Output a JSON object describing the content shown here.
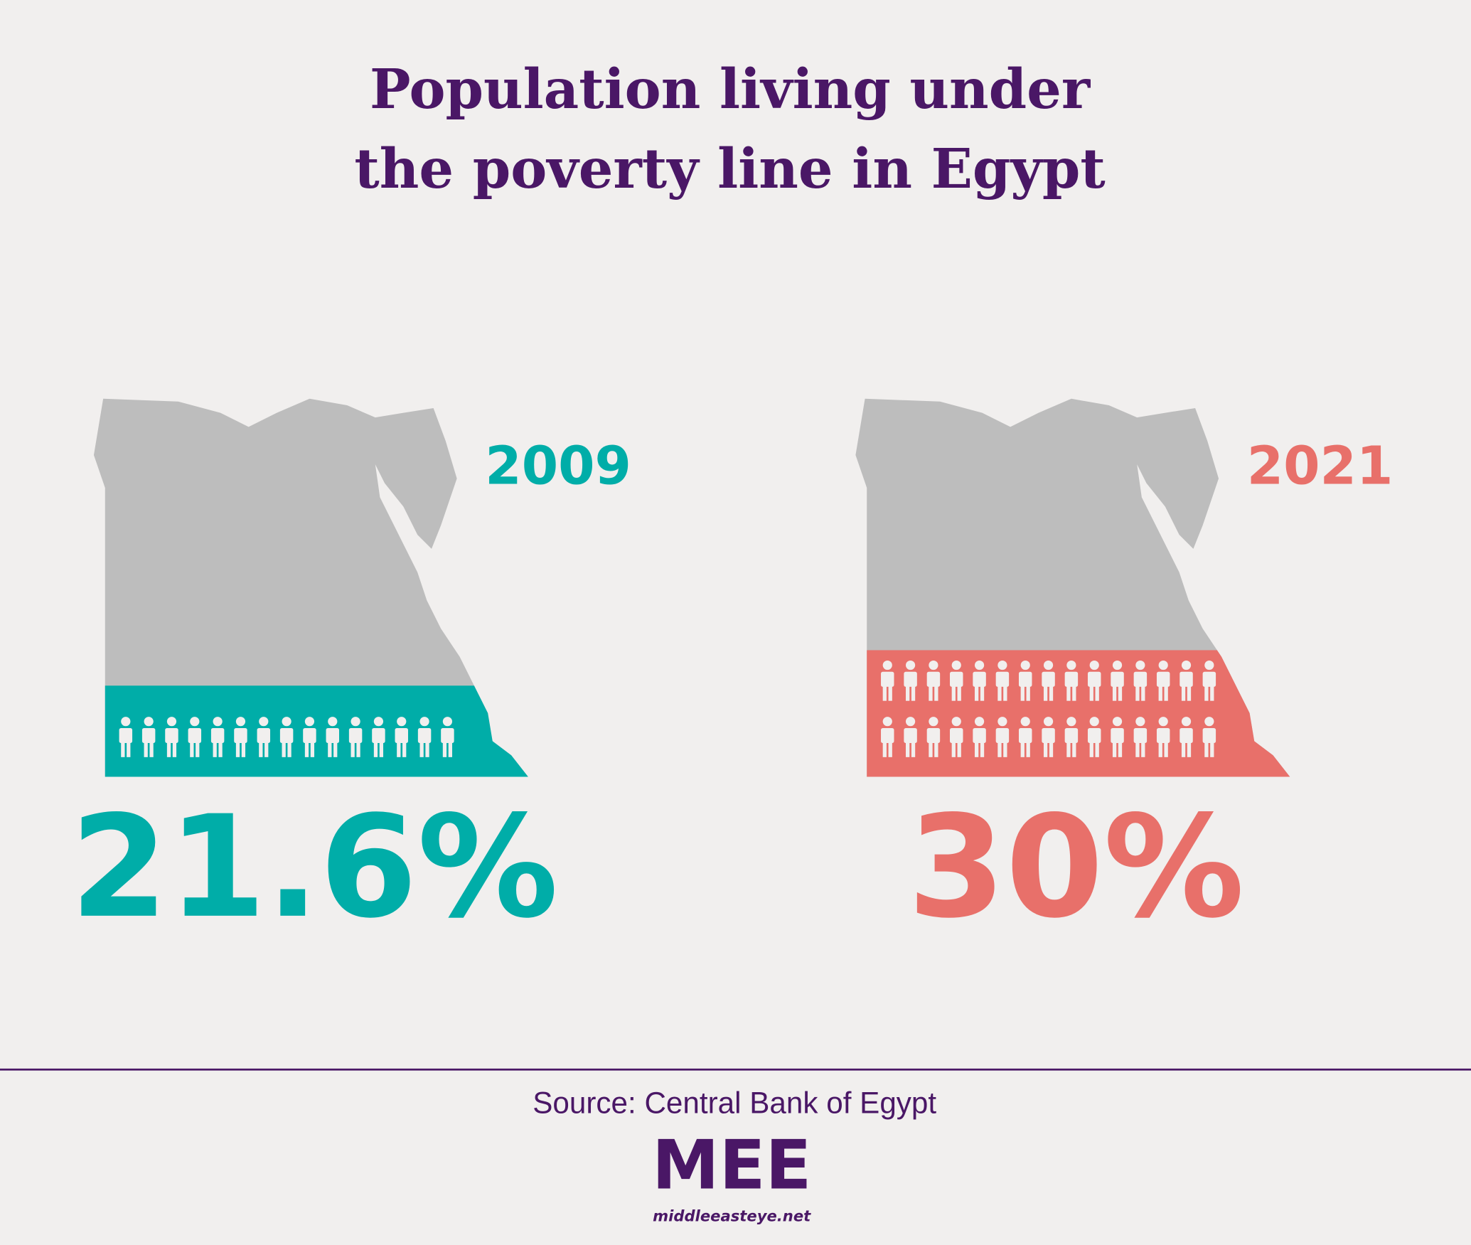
{
  "title": [
    "Population living under",
    "the poverty line in Egypt"
  ],
  "panels": [
    {
      "year": "2009",
      "value": 21.6,
      "value_label": "21.6%",
      "color": "#00ada8"
    },
    {
      "year": "2021",
      "value": 30,
      "value_label": "30%",
      "color": "#e8706a"
    }
  ],
  "source": "Source: Central Bank of Egypt",
  "logo": "MEE",
  "site": "middleeasteye.net"
}
